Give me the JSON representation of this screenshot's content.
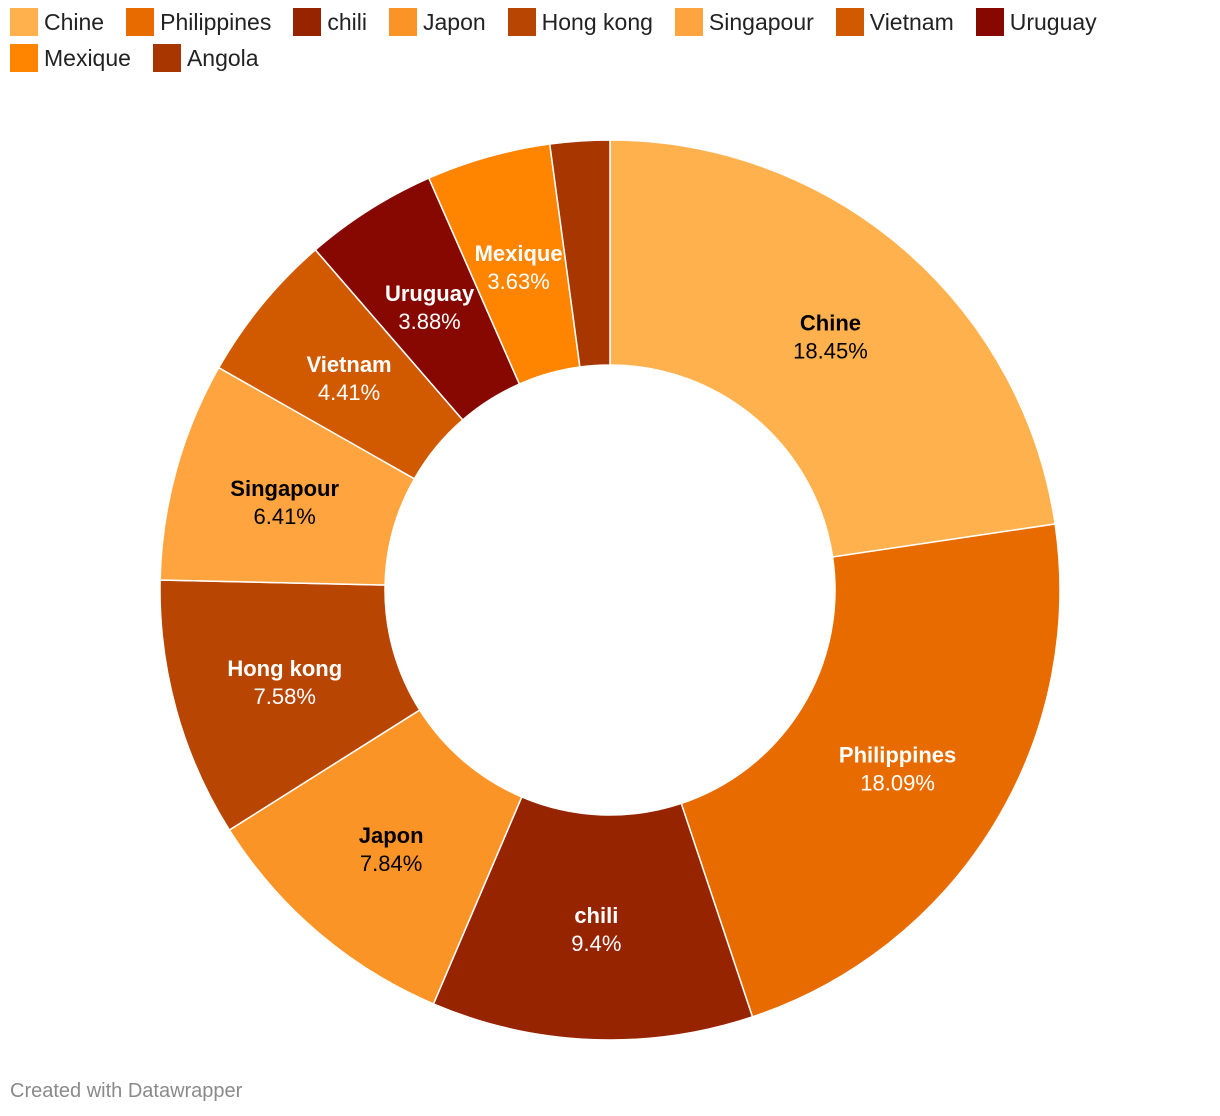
{
  "chart_data": {
    "type": "pie",
    "variant": "donut",
    "legend_position": "top",
    "slices": [
      {
        "label": "Chine",
        "value": 18.45,
        "value_label": "18.45%",
        "color": "#FFB14E",
        "label_color": "#000000"
      },
      {
        "label": "Philippines",
        "value": 18.09,
        "value_label": "18.09%",
        "color": "#E86B00",
        "label_color": "#ffffff"
      },
      {
        "label": "chili",
        "value": 9.4,
        "value_label": "9.4%",
        "color": "#972400",
        "label_color": "#ffffff"
      },
      {
        "label": "Japon",
        "value": 7.84,
        "value_label": "7.84%",
        "color": "#FB9426",
        "label_color": "#000000"
      },
      {
        "label": "Hong kong",
        "value": 7.58,
        "value_label": "7.58%",
        "color": "#B84502",
        "label_color": "#ffffff"
      },
      {
        "label": "Singapour",
        "value": 6.41,
        "value_label": "6.41%",
        "color": "#FFA43E",
        "label_color": "#000000"
      },
      {
        "label": "Vietnam",
        "value": 4.41,
        "value_label": "4.41%",
        "color": "#D15A00",
        "label_color": "#ffffff"
      },
      {
        "label": "Uruguay",
        "value": 3.88,
        "value_label": "3.88%",
        "color": "#870800",
        "label_color": "#ffffff"
      },
      {
        "label": "Mexique",
        "value": 3.63,
        "value_label": "3.63%",
        "color": "#FF8400",
        "label_color": "#ffffff"
      },
      {
        "label": "Angola",
        "value": 1.74,
        "value_label": "",
        "color": "#A73600",
        "label_color": "#ffffff"
      }
    ]
  },
  "footer": {
    "credit": "Created with Datawrapper"
  }
}
